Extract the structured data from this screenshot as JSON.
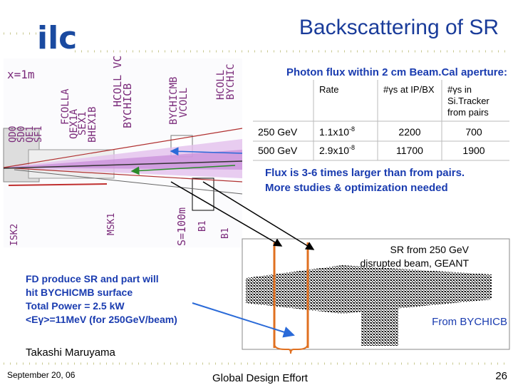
{
  "header": {
    "logo": "ilc",
    "title": "Backscattering of SR"
  },
  "beamline": {
    "labels": [
      "x=1m",
      "QD0",
      "SD0",
      "QE1",
      "SF1",
      "FCOLLA",
      "QEX1A",
      "SEX1",
      "BHEX1B",
      "HCOLL VC",
      "BYCHICB",
      "BYCHICMB",
      "VCOLL",
      "HCOLL",
      "BYCHIC",
      "MSK1",
      "ISK2",
      "S=100m",
      "B1",
      "B1"
    ]
  },
  "table": {
    "caption": "Photon flux within 2 cm Beam.Cal aperture:",
    "header": [
      "Rate",
      "#γs at IP/BX",
      [
        "#γs in",
        "Si.Tracker",
        "from pairs"
      ]
    ],
    "rows": [
      {
        "energy": "250 GeV",
        "rate": {
          "base": "1.1x10",
          "exp": "-8"
        },
        "ip": "2200",
        "tracker": "700"
      },
      {
        "energy": "500 GeV",
        "rate": {
          "base": "2.9x10",
          "exp": "-8"
        },
        "ip": "11700",
        "tracker": "1900"
      }
    ]
  },
  "note": [
    "Flux is 3-6 times larger than from pairs.",
    "More studies & optimization needed"
  ],
  "left_note": [
    "FD produce SR and part will",
    "hit BYCHICMB surface",
    "Total Power = 2.5 kW",
    "<Eγ>=11MeV (for 250GeV/beam)"
  ],
  "plot_label": [
    "SR from 250 GeV",
    "disrupted beam, GEANT"
  ],
  "from_label": "From BYCHICB",
  "author": "Takashi Maruyama",
  "footer": {
    "date": "September 20, 06",
    "center": "Global Design Effort",
    "page": "26"
  }
}
